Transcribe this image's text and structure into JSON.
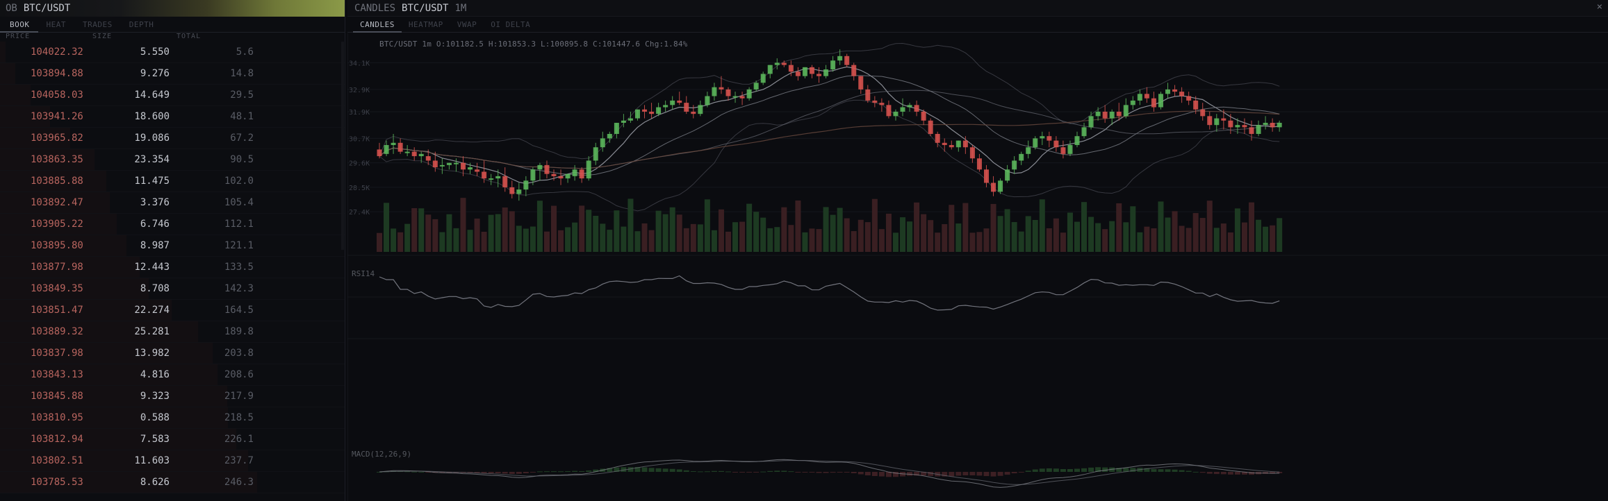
{
  "orderbook": {
    "header": {
      "kind": "OB",
      "symbol": "BTC/USDT"
    },
    "tabs": [
      "BOOK",
      "HEAT",
      "TRADES",
      "DEPTH"
    ],
    "columns": {
      "price": "PRICE",
      "size": "SIZE",
      "total": "TOTAL"
    },
    "rows": [
      {
        "price": "104022.32",
        "size": "5.550",
        "total": "5.6"
      },
      {
        "price": "103894.88",
        "size": "9.276",
        "total": "14.8"
      },
      {
        "price": "104058.03",
        "size": "14.649",
        "total": "29.5"
      },
      {
        "price": "103941.26",
        "size": "18.600",
        "total": "48.1"
      },
      {
        "price": "103965.82",
        "size": "19.086",
        "total": "67.2"
      },
      {
        "price": "103863.35",
        "size": "23.354",
        "total": "90.5"
      },
      {
        "price": "103885.88",
        "size": "11.475",
        "total": "102.0"
      },
      {
        "price": "103892.47",
        "size": "3.376",
        "total": "105.4"
      },
      {
        "price": "103905.22",
        "size": "6.746",
        "total": "112.1"
      },
      {
        "price": "103895.80",
        "size": "8.987",
        "total": "121.1"
      },
      {
        "price": "103877.98",
        "size": "12.443",
        "total": "133.5"
      },
      {
        "price": "103849.35",
        "size": "8.708",
        "total": "142.3"
      },
      {
        "price": "103851.47",
        "size": "22.274",
        "total": "164.5"
      },
      {
        "price": "103889.32",
        "size": "25.281",
        "total": "189.8"
      },
      {
        "price": "103837.98",
        "size": "13.982",
        "total": "203.8"
      },
      {
        "price": "103843.13",
        "size": "4.816",
        "total": "208.6"
      },
      {
        "price": "103845.88",
        "size": "9.323",
        "total": "217.9"
      },
      {
        "price": "103810.95",
        "size": "0.588",
        "total": "218.5"
      },
      {
        "price": "103812.94",
        "size": "7.583",
        "total": "226.1"
      },
      {
        "price": "103802.51",
        "size": "11.603",
        "total": "237.7"
      },
      {
        "price": "103785.53",
        "size": "8.626",
        "total": "246.3"
      }
    ]
  },
  "chart": {
    "header": {
      "kind": "CANDLES",
      "symbol": "BTC/USDT",
      "timeframe": "1M",
      "close": "×"
    },
    "tabs": [
      "CANDLES",
      "HEATMAP",
      "VWAP",
      "OI DELTA"
    ],
    "ohlc_readout": "BTC/USDT 1m O:101182.5 H:101853.3 L:100895.8 C:101447.6 Chg:1.84%",
    "price_labels": [
      "34.1K",
      "32.9K",
      "31.9K",
      "30.7K",
      "29.6K",
      "28.5K",
      "27.4K"
    ],
    "rsi_label": "RSI14",
    "macd_label": "MACD(12,26,9)",
    "colors": {
      "up": "#5cb85c",
      "down": "#d9534f",
      "up_vol": "#1d3a22",
      "down_vol": "#3a1f22"
    }
  },
  "chart_data": {
    "type": "candlestick",
    "y_ticks": [
      "34.1K",
      "32.9K",
      "31.9K",
      "30.7K",
      "29.6K",
      "28.5K",
      "27.4K"
    ],
    "candles": [
      [
        30.2,
        30.5,
        29.9,
        29.8
      ],
      [
        30.0,
        30.6,
        30.4,
        29.9
      ],
      [
        30.4,
        30.9,
        30.5,
        30.0
      ],
      [
        30.5,
        30.7,
        30.1,
        30.0
      ],
      [
        30.1,
        30.4,
        30.1,
        29.9
      ],
      [
        30.1,
        30.3,
        29.9,
        29.7
      ],
      [
        29.9,
        30.1,
        30.0,
        29.6
      ],
      [
        29.9,
        30.2,
        29.7,
        29.5
      ],
      [
        29.7,
        30.1,
        29.4,
        29.2
      ],
      [
        29.5,
        29.8,
        29.5,
        29.1
      ],
      [
        29.5,
        29.6,
        29.6,
        29.3
      ],
      [
        29.6,
        29.8,
        29.6,
        29.2
      ],
      [
        29.6,
        29.9,
        29.3,
        29.0
      ],
      [
        29.3,
        29.6,
        29.4,
        29.1
      ],
      [
        29.3,
        29.6,
        29.2,
        29.0
      ],
      [
        29.2,
        29.7,
        28.9,
        28.7
      ],
      [
        28.9,
        29.1,
        28.9,
        28.6
      ],
      [
        28.9,
        29.3,
        29.0,
        28.5
      ],
      [
        29.0,
        29.4,
        28.5,
        28.3
      ],
      [
        28.5,
        28.8,
        28.2,
        28.0
      ],
      [
        28.2,
        28.7,
        28.4,
        27.9
      ],
      [
        28.4,
        29.0,
        28.8,
        28.1
      ],
      [
        28.8,
        29.4,
        29.3,
        28.6
      ],
      [
        29.3,
        29.6,
        29.5,
        28.8
      ],
      [
        29.5,
        29.7,
        29.1,
        28.9
      ],
      [
        29.1,
        29.3,
        29.0,
        28.8
      ],
      [
        29.0,
        29.3,
        28.9,
        28.6
      ],
      [
        28.9,
        29.1,
        29.1,
        28.7
      ],
      [
        29.0,
        29.5,
        29.3,
        28.8
      ],
      [
        29.3,
        29.4,
        28.9,
        28.7
      ],
      [
        28.9,
        29.9,
        29.7,
        28.8
      ],
      [
        29.7,
        30.5,
        30.3,
        29.5
      ],
      [
        30.3,
        31.0,
        30.7,
        30.1
      ],
      [
        30.7,
        31.0,
        30.9,
        30.5
      ],
      [
        30.9,
        31.4,
        31.4,
        30.7
      ],
      [
        31.4,
        31.8,
        31.5,
        31.2
      ],
      [
        31.5,
        31.9,
        31.6,
        31.4
      ],
      [
        31.6,
        32.0,
        32.0,
        31.5
      ],
      [
        32.0,
        32.2,
        31.9,
        31.6
      ],
      [
        31.9,
        32.3,
        31.8,
        31.6
      ],
      [
        31.8,
        32.3,
        32.1,
        31.7
      ],
      [
        32.1,
        32.4,
        32.2,
        31.9
      ],
      [
        32.2,
        32.6,
        32.4,
        32.0
      ],
      [
        32.4,
        32.8,
        32.3,
        32.2
      ],
      [
        32.3,
        32.6,
        31.9,
        31.8
      ],
      [
        31.9,
        32.2,
        31.8,
        31.6
      ],
      [
        31.8,
        32.4,
        32.2,
        31.7
      ],
      [
        32.2,
        32.8,
        32.6,
        32.1
      ],
      [
        32.6,
        33.2,
        33.0,
        32.4
      ],
      [
        33.0,
        33.5,
        32.9,
        32.7
      ],
      [
        32.9,
        33.0,
        32.6,
        32.4
      ],
      [
        32.6,
        32.8,
        32.6,
        32.3
      ],
      [
        32.6,
        32.8,
        32.5,
        32.2
      ],
      [
        32.5,
        33.0,
        32.9,
        32.4
      ],
      [
        32.9,
        33.3,
        33.2,
        32.8
      ],
      [
        33.2,
        33.7,
        33.6,
        33.1
      ],
      [
        33.6,
        34.0,
        34.0,
        33.4
      ],
      [
        34.0,
        34.3,
        34.1,
        33.8
      ],
      [
        34.1,
        34.2,
        34.0,
        33.9
      ],
      [
        34.0,
        34.2,
        33.7,
        33.5
      ],
      [
        33.7,
        33.9,
        33.5,
        33.3
      ],
      [
        33.5,
        33.9,
        33.9,
        33.4
      ],
      [
        33.9,
        34.0,
        33.6,
        33.4
      ],
      [
        33.6,
        33.9,
        33.5,
        33.2
      ],
      [
        33.5,
        34.0,
        33.8,
        33.4
      ],
      [
        33.8,
        34.4,
        34.2,
        33.7
      ],
      [
        34.2,
        34.7,
        34.4,
        34.0
      ],
      [
        34.4,
        34.5,
        34.0,
        33.9
      ],
      [
        34.0,
        34.1,
        33.5,
        33.3
      ],
      [
        33.5,
        33.5,
        32.9,
        32.7
      ],
      [
        32.9,
        33.1,
        32.4,
        32.3
      ],
      [
        32.4,
        32.6,
        32.3,
        32.1
      ],
      [
        32.3,
        32.5,
        32.2,
        31.9
      ],
      [
        32.2,
        32.4,
        31.7,
        31.6
      ],
      [
        31.7,
        32.0,
        31.9,
        31.5
      ],
      [
        31.9,
        32.5,
        32.1,
        31.7
      ],
      [
        32.1,
        32.3,
        32.2,
        31.9
      ],
      [
        32.2,
        32.4,
        31.9,
        31.7
      ],
      [
        31.9,
        32.0,
        31.5,
        31.3
      ],
      [
        31.5,
        31.6,
        30.9,
        30.8
      ],
      [
        30.9,
        31.0,
        30.5,
        30.3
      ],
      [
        30.5,
        30.7,
        30.4,
        30.1
      ],
      [
        30.4,
        30.6,
        30.3,
        30.2
      ],
      [
        30.3,
        30.6,
        30.6,
        30.1
      ],
      [
        30.6,
        30.8,
        30.3,
        30.0
      ],
      [
        30.3,
        30.4,
        29.8,
        29.6
      ],
      [
        29.8,
        30.0,
        29.3,
        29.2
      ],
      [
        29.3,
        29.5,
        28.7,
        28.5
      ],
      [
        28.7,
        29.0,
        28.3,
        28.1
      ],
      [
        28.3,
        28.9,
        28.8,
        28.2
      ],
      [
        28.8,
        29.5,
        29.3,
        28.7
      ],
      [
        29.3,
        29.9,
        29.7,
        29.1
      ],
      [
        29.7,
        30.1,
        30.0,
        29.5
      ],
      [
        30.0,
        30.6,
        30.3,
        29.8
      ],
      [
        30.3,
        30.8,
        30.7,
        30.2
      ],
      [
        30.7,
        31.0,
        30.8,
        30.4
      ],
      [
        30.8,
        31.0,
        30.6,
        30.3
      ],
      [
        30.6,
        30.8,
        30.3,
        30.1
      ],
      [
        30.3,
        30.6,
        30.0,
        29.8
      ],
      [
        30.0,
        30.6,
        30.4,
        29.9
      ],
      [
        30.4,
        31.0,
        30.8,
        30.3
      ],
      [
        30.8,
        31.4,
        31.2,
        30.7
      ],
      [
        31.2,
        31.9,
        31.7,
        31.1
      ],
      [
        31.7,
        32.1,
        31.9,
        31.5
      ],
      [
        31.9,
        32.2,
        31.6,
        31.4
      ],
      [
        31.6,
        32.0,
        31.9,
        31.3
      ],
      [
        31.9,
        32.3,
        31.7,
        31.5
      ],
      [
        31.7,
        32.5,
        32.2,
        31.6
      ],
      [
        32.2,
        32.6,
        32.4,
        32.0
      ],
      [
        32.4,
        32.9,
        32.7,
        32.2
      ],
      [
        32.7,
        33.0,
        32.5,
        32.3
      ],
      [
        32.5,
        32.8,
        32.1,
        31.9
      ],
      [
        32.1,
        32.8,
        32.7,
        32.0
      ],
      [
        32.7,
        33.2,
        32.9,
        32.5
      ],
      [
        32.9,
        33.1,
        32.8,
        32.6
      ],
      [
        32.8,
        33.0,
        32.6,
        32.3
      ],
      [
        32.6,
        32.8,
        32.4,
        32.2
      ],
      [
        32.4,
        32.6,
        32.0,
        31.8
      ],
      [
        32.0,
        32.3,
        31.7,
        31.5
      ],
      [
        31.7,
        31.9,
        31.3,
        31.1
      ],
      [
        31.3,
        31.8,
        31.6,
        31.0
      ],
      [
        31.6,
        32.0,
        31.5,
        31.1
      ],
      [
        31.5,
        31.8,
        31.2,
        30.9
      ],
      [
        31.2,
        31.6,
        31.3,
        30.9
      ],
      [
        31.3,
        31.6,
        31.2,
        30.9
      ],
      [
        31.2,
        31.5,
        30.9,
        30.6
      ],
      [
        30.9,
        31.5,
        31.3,
        30.8
      ],
      [
        31.3,
        31.7,
        31.4,
        31.1
      ],
      [
        31.4,
        31.6,
        31.2,
        31.0
      ],
      [
        31.2,
        31.5,
        31.4,
        31.0
      ]
    ]
  }
}
